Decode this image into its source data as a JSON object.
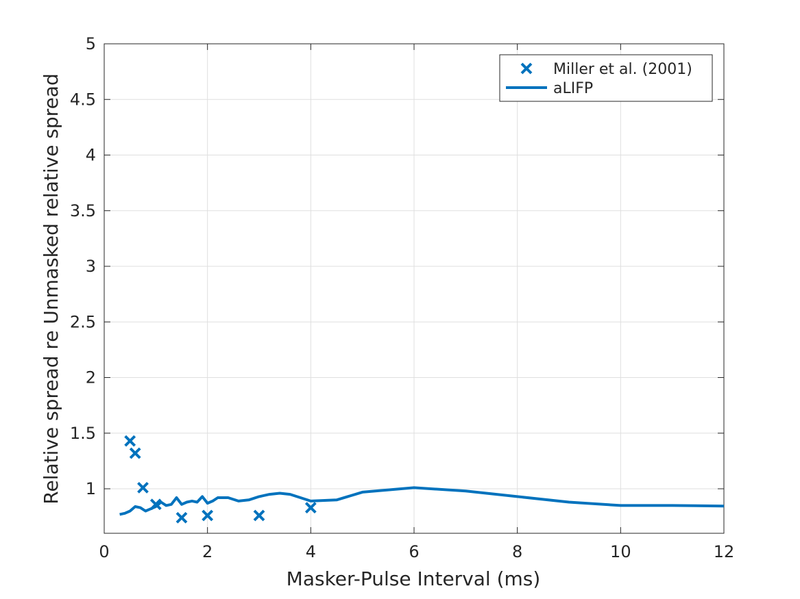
{
  "chart_data": {
    "type": "line",
    "title": "",
    "xlabel": "Masker-Pulse Interval (ms)",
    "ylabel": "Relative spread re Unmasked relative spread",
    "xlim": [
      0,
      12
    ],
    "ylim": [
      0.6,
      5
    ],
    "xticks": [
      0,
      2,
      4,
      6,
      8,
      10,
      12
    ],
    "xtick_labels": [
      "0",
      "2",
      "4",
      "6",
      "8",
      "10",
      "12"
    ],
    "yticks": [
      1,
      1.5,
      2,
      2.5,
      3,
      3.5,
      4,
      4.5,
      5
    ],
    "ytick_labels": [
      "1",
      "1.5",
      "2",
      "2.5",
      "3",
      "3.5",
      "4",
      "4.5",
      "5"
    ],
    "grid": true,
    "legend_position": "top-right",
    "series": [
      {
        "name": "Miller et al. (2001)",
        "kind": "scatter",
        "marker": "x",
        "color": "#0072BD",
        "x": [
          0.5,
          0.6,
          0.75,
          1.0,
          1.5,
          2.0,
          3.0,
          4.0
        ],
        "y": [
          1.43,
          1.32,
          1.01,
          0.86,
          0.74,
          0.76,
          0.76,
          0.83
        ]
      },
      {
        "name": "aLIFP",
        "kind": "line",
        "color": "#0072BD",
        "x": [
          0.3,
          0.4,
          0.5,
          0.6,
          0.7,
          0.8,
          0.9,
          1.0,
          1.1,
          1.2,
          1.3,
          1.4,
          1.5,
          1.6,
          1.7,
          1.8,
          1.9,
          2.0,
          2.1,
          2.2,
          2.4,
          2.6,
          2.8,
          3.0,
          3.2,
          3.4,
          3.6,
          3.8,
          4.0,
          4.5,
          5.0,
          6.0,
          7.0,
          8.0,
          9.0,
          10.0,
          11.0,
          12.0
        ],
        "y": [
          0.77,
          0.78,
          0.8,
          0.84,
          0.83,
          0.8,
          0.82,
          0.84,
          0.88,
          0.85,
          0.86,
          0.92,
          0.86,
          0.88,
          0.89,
          0.88,
          0.93,
          0.87,
          0.89,
          0.92,
          0.92,
          0.89,
          0.9,
          0.93,
          0.95,
          0.96,
          0.95,
          0.92,
          0.89,
          0.9,
          0.97,
          1.01,
          0.98,
          0.93,
          0.88,
          0.85,
          0.85,
          0.845
        ]
      }
    ]
  }
}
